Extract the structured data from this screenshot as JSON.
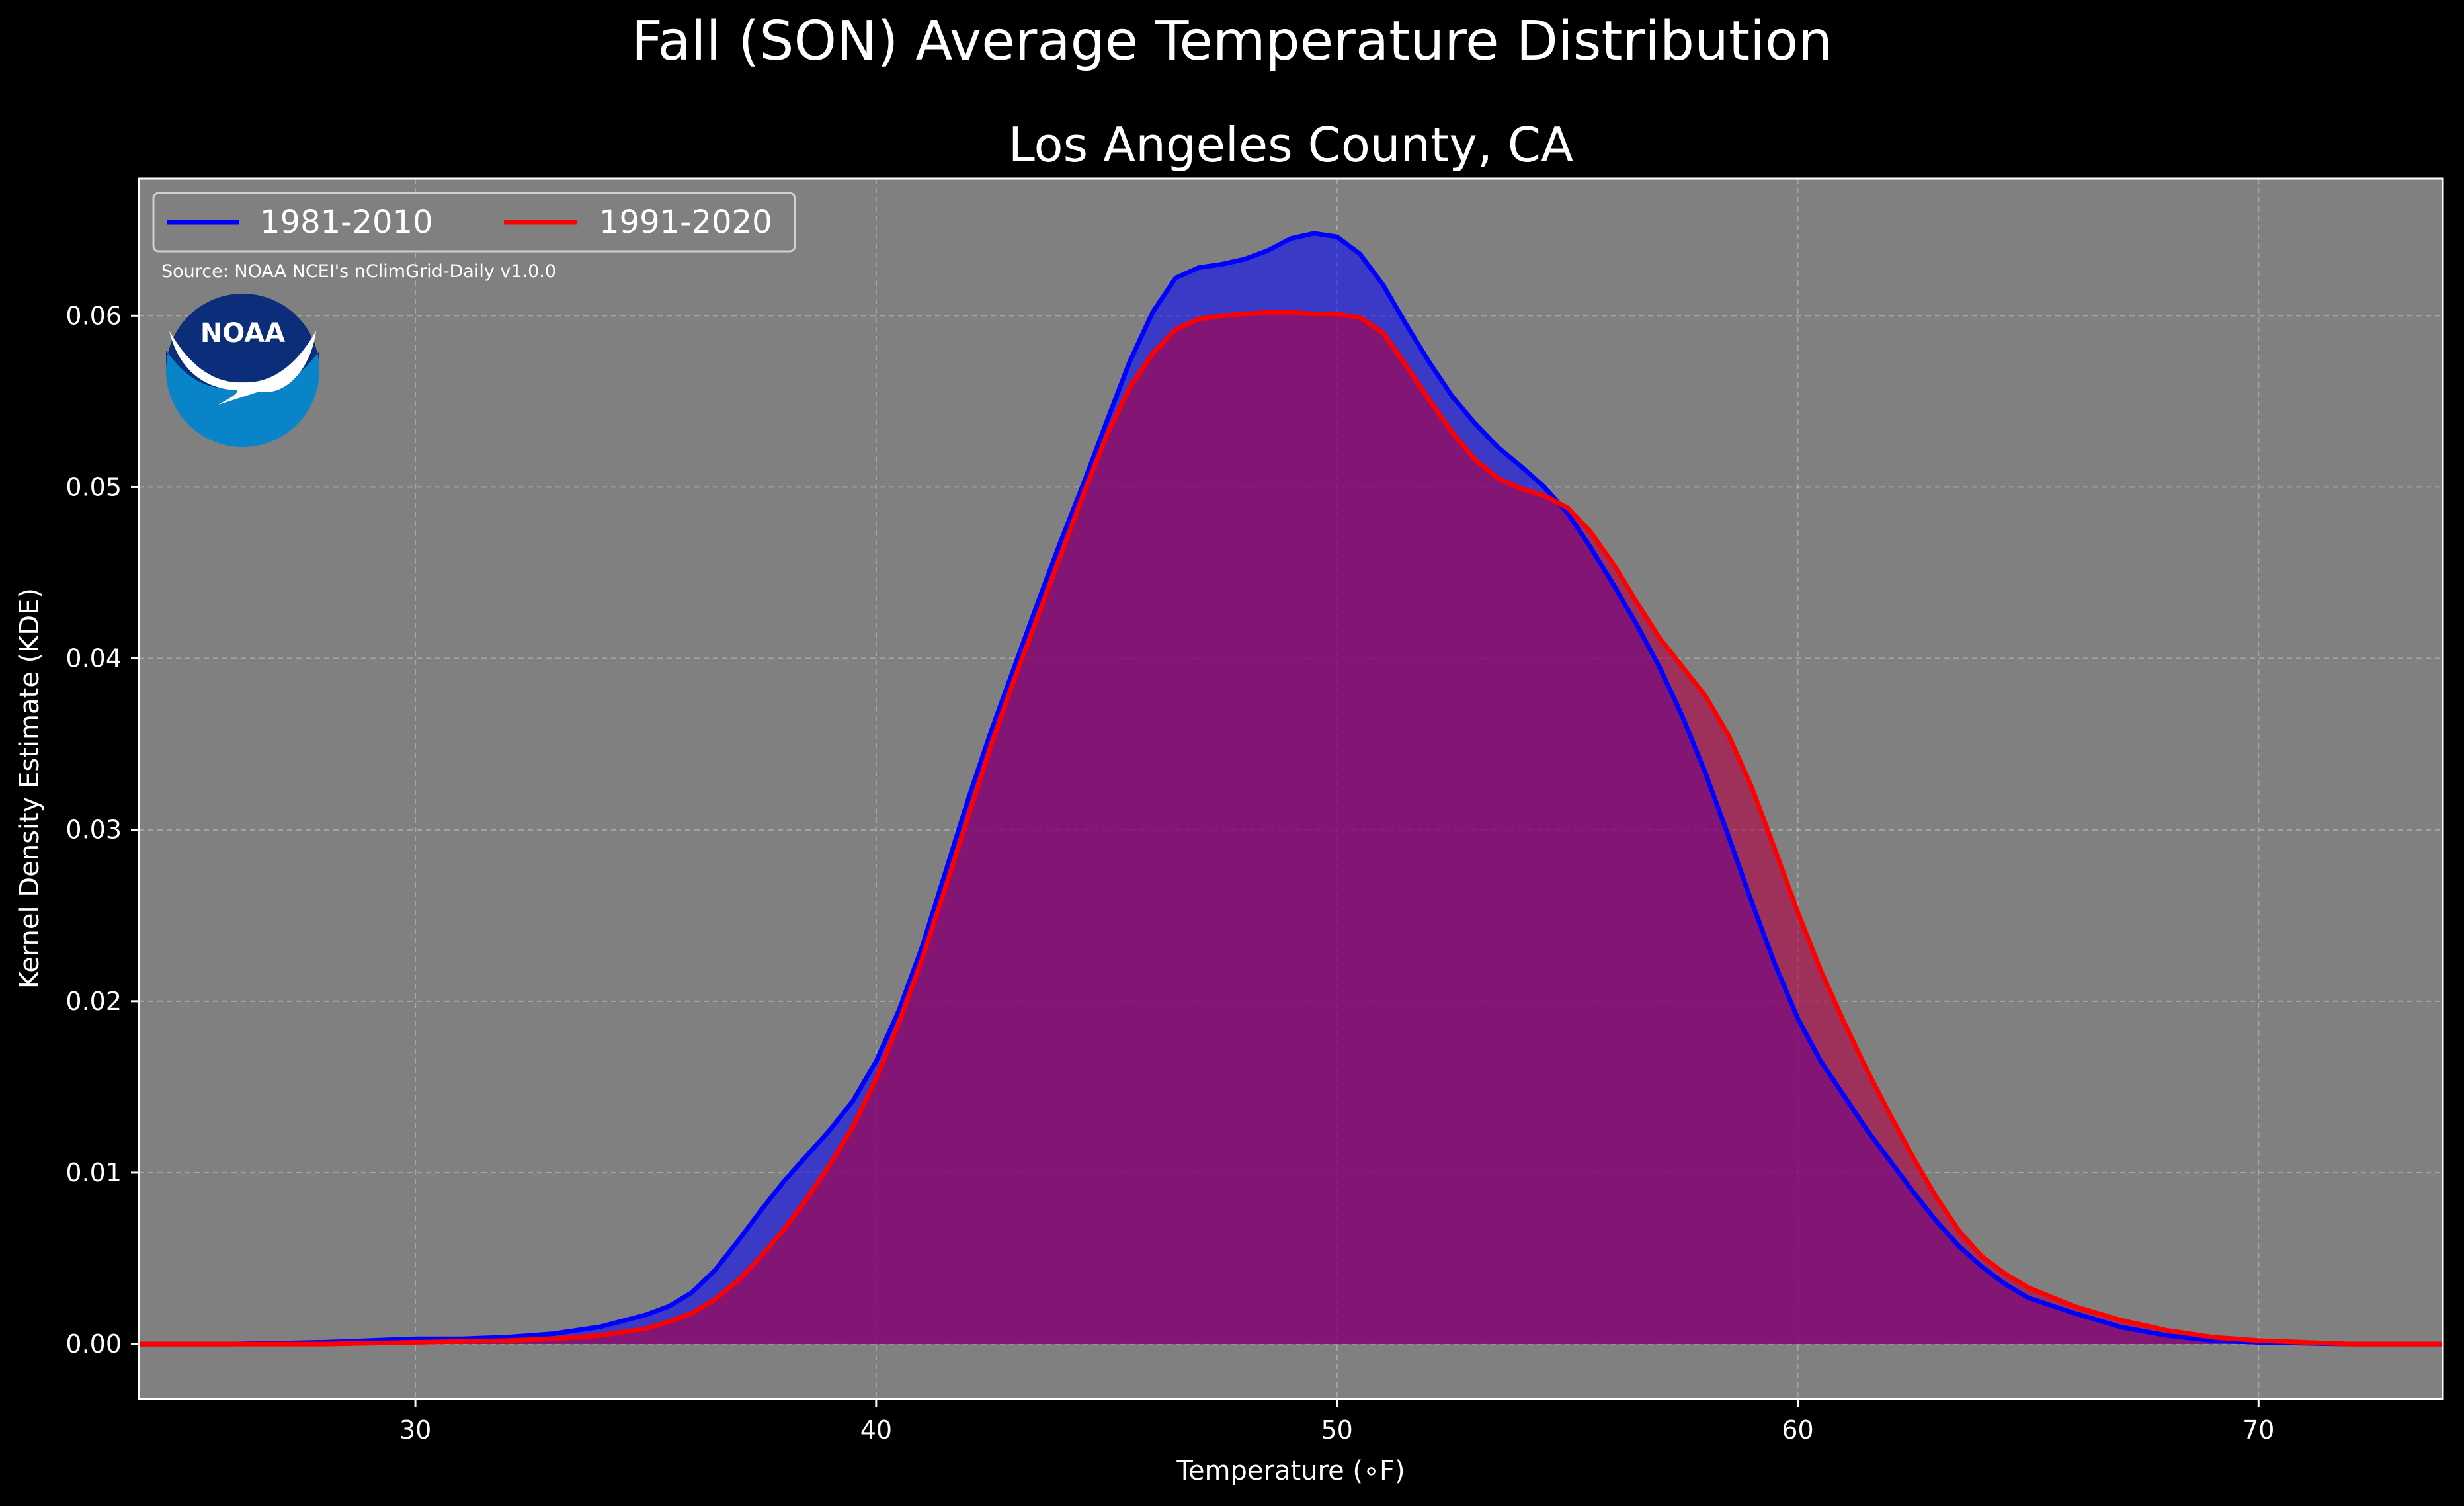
{
  "chart_data": {
    "type": "area",
    "title": "Fall (SON) Average Temperature Distribution",
    "subtitle": "Los Angeles County, CA",
    "xlabel": "Temperature (∘F)",
    "ylabel": "Kernel Density Estimate (KDE)",
    "xlim": [
      24,
      74
    ],
    "ylim": [
      -0.0032,
      0.068
    ],
    "xticks": [
      30,
      40,
      50,
      60,
      70
    ],
    "yticks": [
      0.0,
      0.01,
      0.02,
      0.03,
      0.04,
      0.05,
      0.06
    ],
    "xtick_labels": [
      "30",
      "40",
      "50",
      "60",
      "70"
    ],
    "ytick_labels": [
      "0.00",
      "0.01",
      "0.02",
      "0.03",
      "0.04",
      "0.05",
      "0.06"
    ],
    "grid": true,
    "legend_position": "top-left",
    "annotation": "Source: NOAA NCEI's nClimGrid-Daily v1.0.0",
    "logo_text": "NOAA",
    "background": "#808080",
    "series": [
      {
        "name": "1981-2010",
        "color": "#0000ff",
        "fill_color": "#0000ff",
        "fill_opacity": 0.55,
        "x": [
          24,
          26,
          28,
          29,
          30,
          31,
          32,
          33,
          34,
          35,
          35.5,
          36,
          36.5,
          37,
          37.5,
          38,
          38.5,
          39,
          39.5,
          40,
          40.5,
          41,
          41.5,
          42,
          42.5,
          43,
          43.5,
          44,
          44.5,
          45,
          45.5,
          46,
          46.5,
          47,
          47.5,
          48,
          48.5,
          49,
          49.5,
          50,
          50.5,
          51,
          51.5,
          52,
          52.5,
          53,
          53.5,
          54,
          54.5,
          55,
          55.5,
          56,
          56.5,
          57,
          57.5,
          58,
          58.5,
          59,
          59.5,
          60,
          60.5,
          61,
          61.5,
          62,
          62.5,
          63,
          63.5,
          64,
          64.5,
          65,
          66,
          67,
          68,
          69,
          70,
          72,
          74
        ],
        "y": [
          0.0,
          0.0,
          0.0001,
          0.0002,
          0.0003,
          0.0003,
          0.0004,
          0.0006,
          0.001,
          0.0017,
          0.0022,
          0.003,
          0.0043,
          0.006,
          0.0078,
          0.0095,
          0.011,
          0.0125,
          0.0142,
          0.0165,
          0.0195,
          0.0232,
          0.0275,
          0.0318,
          0.0358,
          0.0395,
          0.0432,
          0.0468,
          0.0502,
          0.0538,
          0.0573,
          0.0602,
          0.0622,
          0.0628,
          0.063,
          0.0633,
          0.0638,
          0.0645,
          0.0648,
          0.0646,
          0.0636,
          0.0618,
          0.0595,
          0.0573,
          0.0553,
          0.0537,
          0.0523,
          0.0512,
          0.05,
          0.0485,
          0.0465,
          0.0443,
          0.042,
          0.0395,
          0.0366,
          0.0333,
          0.0296,
          0.0258,
          0.0222,
          0.019,
          0.0165,
          0.0145,
          0.0125,
          0.0107,
          0.0089,
          0.0072,
          0.0057,
          0.0045,
          0.0035,
          0.0027,
          0.0018,
          0.001,
          0.0005,
          0.0002,
          0.0001,
          0.0,
          0.0
        ]
      },
      {
        "name": "1991-2020",
        "color": "#ff0000",
        "fill_color": "#b00044",
        "fill_opacity": 0.62,
        "x": [
          24,
          28,
          30,
          32,
          33,
          34,
          35,
          35.5,
          36,
          36.5,
          37,
          37.5,
          38,
          38.5,
          39,
          39.5,
          40,
          40.5,
          41,
          41.5,
          42,
          42.5,
          43,
          43.5,
          44,
          44.5,
          45,
          45.5,
          46,
          46.5,
          47,
          47.5,
          48,
          48.5,
          49,
          49.5,
          50,
          50.5,
          51,
          51.5,
          52,
          52.5,
          53,
          53.5,
          54,
          54.5,
          55,
          55.5,
          56,
          56.5,
          57,
          57.5,
          58,
          58.5,
          59,
          59.5,
          60,
          60.5,
          61,
          61.5,
          62,
          62.5,
          63,
          63.5,
          64,
          64.5,
          65,
          66,
          67,
          68,
          69,
          70,
          72,
          74
        ],
        "y": [
          0.0,
          0.0,
          0.0001,
          0.0002,
          0.0003,
          0.0005,
          0.0009,
          0.0013,
          0.0018,
          0.0026,
          0.0037,
          0.0051,
          0.0067,
          0.0085,
          0.0105,
          0.0127,
          0.0155,
          0.0188,
          0.0225,
          0.0266,
          0.0308,
          0.035,
          0.0388,
          0.0424,
          0.046,
          0.0496,
          0.053,
          0.0558,
          0.0578,
          0.0592,
          0.0598,
          0.06,
          0.0601,
          0.0602,
          0.0602,
          0.0601,
          0.0601,
          0.0599,
          0.059,
          0.0571,
          0.0551,
          0.0532,
          0.0516,
          0.0505,
          0.0499,
          0.0495,
          0.0488,
          0.0474,
          0.0455,
          0.0433,
          0.0412,
          0.0395,
          0.0378,
          0.0355,
          0.0325,
          0.0289,
          0.0252,
          0.0218,
          0.0188,
          0.016,
          0.0134,
          0.0109,
          0.0086,
          0.0066,
          0.0051,
          0.0041,
          0.0033,
          0.0022,
          0.0014,
          0.0008,
          0.0004,
          0.0002,
          0.0,
          0.0
        ]
      }
    ]
  }
}
